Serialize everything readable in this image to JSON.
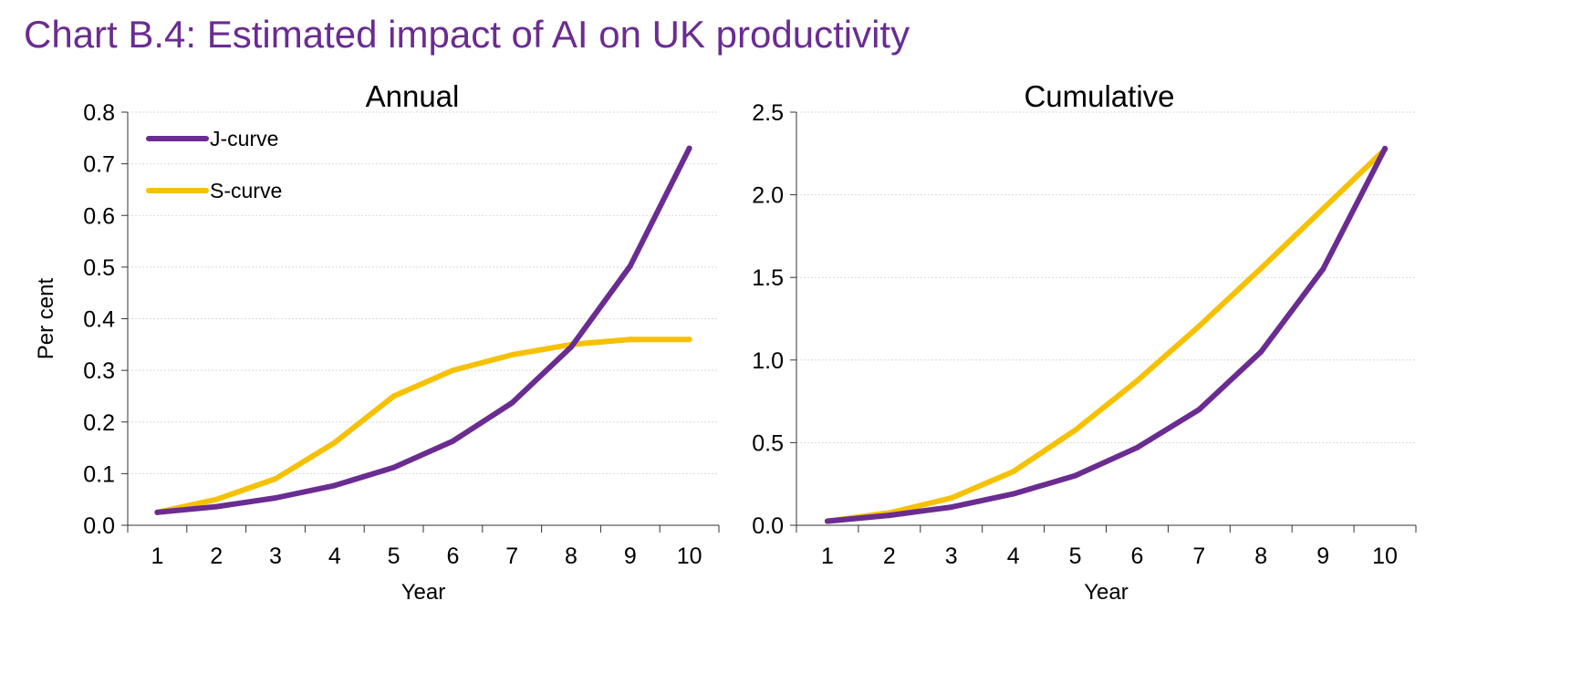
{
  "page": {
    "title": "Chart B.4: Estimated impact of AI on UK productivity"
  },
  "colors": {
    "title": "#6a2c91",
    "j_curve": "#6a2c91",
    "s_curve": "#f6c100",
    "grid": "#d9d9d9",
    "axis": "#333333"
  },
  "chart_data": [
    {
      "type": "line",
      "title": "Annual",
      "xlabel": "Year",
      "ylabel": "Per cent",
      "x": [
        1,
        2,
        3,
        4,
        5,
        6,
        7,
        8,
        9,
        10
      ],
      "xticks": [
        "1",
        "2",
        "3",
        "4",
        "5",
        "6",
        "7",
        "8",
        "9",
        "10"
      ],
      "ylim": [
        0,
        0.8
      ],
      "yticks": [
        "0.0",
        "0.1",
        "0.2",
        "0.3",
        "0.4",
        "0.5",
        "0.6",
        "0.7",
        "0.8"
      ],
      "grid": true,
      "legend": "top-left",
      "series": [
        {
          "name": "J-curve",
          "color": "#6a2c91",
          "values": [
            0.025,
            0.036,
            0.053,
            0.077,
            0.112,
            0.163,
            0.237,
            0.345,
            0.502,
            0.73
          ]
        },
        {
          "name": "S-curve",
          "color": "#f6c100",
          "values": [
            0.025,
            0.05,
            0.09,
            0.16,
            0.25,
            0.3,
            0.33,
            0.35,
            0.36,
            0.36
          ]
        }
      ]
    },
    {
      "type": "line",
      "title": "Cumulative",
      "xlabel": "Year",
      "ylabel": "",
      "x": [
        1,
        2,
        3,
        4,
        5,
        6,
        7,
        8,
        9,
        10
      ],
      "xticks": [
        "1",
        "2",
        "3",
        "4",
        "5",
        "6",
        "7",
        "8",
        "9",
        "10"
      ],
      "ylim": [
        0,
        2.5
      ],
      "yticks": [
        "0.0",
        "0.5",
        "1.0",
        "1.5",
        "2.0",
        "2.5"
      ],
      "grid": true,
      "legend": "none",
      "series": [
        {
          "name": "J-curve",
          "color": "#6a2c91",
          "values": [
            0.025,
            0.06,
            0.11,
            0.19,
            0.3,
            0.47,
            0.7,
            1.05,
            1.55,
            2.28
          ]
        },
        {
          "name": "S-curve",
          "color": "#f6c100",
          "values": [
            0.025,
            0.075,
            0.165,
            0.325,
            0.575,
            0.875,
            1.205,
            1.555,
            1.915,
            2.275
          ]
        }
      ]
    }
  ]
}
